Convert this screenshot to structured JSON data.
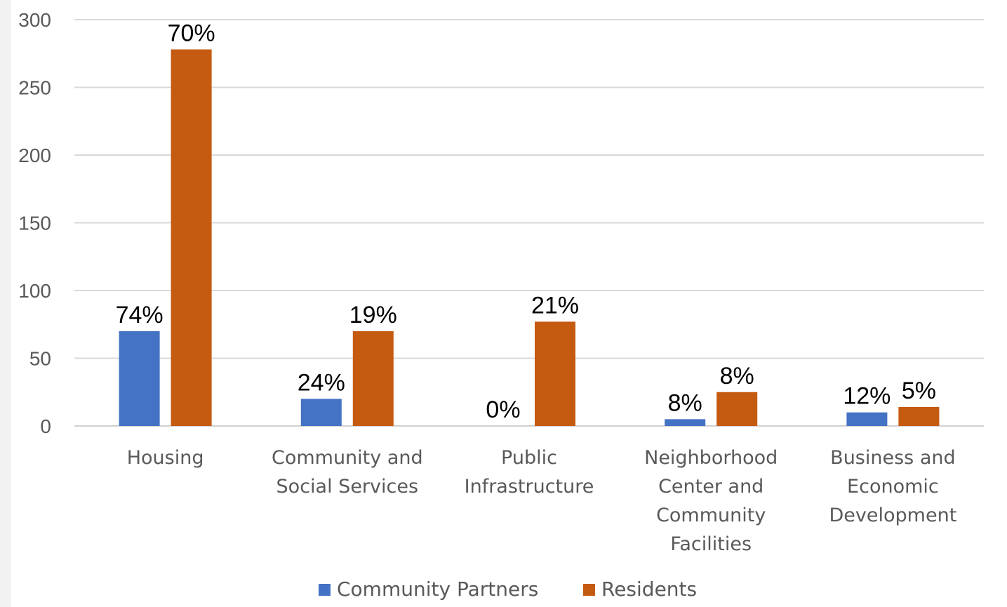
{
  "chart_data": {
    "type": "bar",
    "categories": [
      [
        "Housing"
      ],
      [
        "Community and",
        "Social Services"
      ],
      [
        "Public",
        "Infrastructure"
      ],
      [
        "Neighborhood",
        "Center and",
        "Community",
        "Facilities"
      ],
      [
        "Business and",
        "Economic",
        "Development"
      ]
    ],
    "series": [
      {
        "name": "Community Partners",
        "color": "#4472c4",
        "values": [
          70,
          20,
          0,
          5,
          10
        ],
        "labels": [
          "74%",
          "24%",
          "0%",
          "8%",
          "12%"
        ]
      },
      {
        "name": "Residents",
        "color": "#c55a11",
        "values": [
          278,
          70,
          77,
          25,
          14
        ],
        "labels": [
          "70%",
          "19%",
          "21%",
          "8%",
          "5%"
        ]
      }
    ],
    "ylim": [
      0,
      300
    ],
    "yticks": [
      0,
      50,
      100,
      150,
      200,
      250,
      300
    ],
    "grid": true,
    "legend": "bottom",
    "title": "",
    "xlabel": "",
    "ylabel": ""
  }
}
